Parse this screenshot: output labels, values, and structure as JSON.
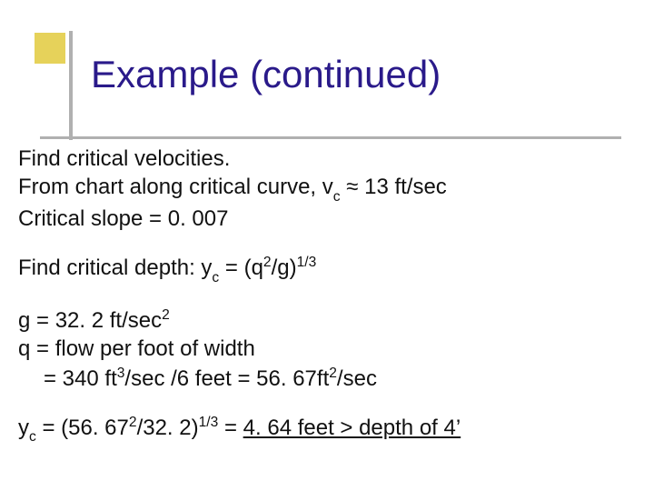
{
  "title": "Example (continued)",
  "colors": {
    "title": "#2a1a8a",
    "accent_box": "#e6d25a",
    "rule": "#b0b0b0",
    "text": "#111111",
    "background": "#ffffff"
  },
  "typography": {
    "title_fontsize_pt": 32,
    "body_fontsize_pt": 18,
    "font_family": "Comic Sans MS"
  },
  "lines": {
    "l1": "Find critical velocities.",
    "l2_a": "From chart along critical curve, v",
    "l2_sub": "c",
    "l2_b": " ",
    "l2_approx": "≈",
    "l2_c": " 13 ft/sec",
    "l3": "Critical slope = 0. 007",
    "l4_a": "Find critical depth:  y",
    "l4_sub": "c",
    "l4_b": " = (q",
    "l4_sup1": "2",
    "l4_c": "/g)",
    "l4_sup2": "1/3",
    "l5_a": "g = 32. 2 ft/sec",
    "l5_sup": "2",
    "l6": "q = flow per foot of width",
    "l7_a": "= 340 ft",
    "l7_sup1": "3",
    "l7_b": "/sec /6 feet = 56. 67ft",
    "l7_sup2": "2",
    "l7_c": "/sec",
    "l8_a": "y",
    "l8_sub": "c",
    "l8_b": " = (56. 67",
    "l8_sup1": "2",
    "l8_c": "/32. 2)",
    "l8_sup2": "1/3",
    "l8_d": " = ",
    "l8_u": "4. 64 feet > depth of 4’"
  }
}
